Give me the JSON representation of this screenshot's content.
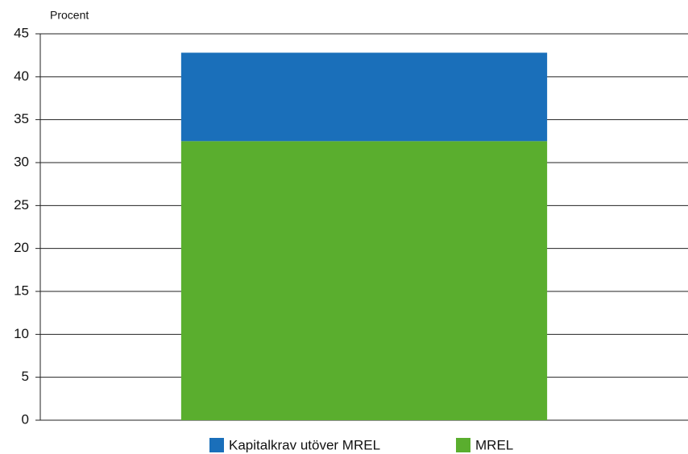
{
  "chart_data": {
    "type": "stacked_bar",
    "y_axis_label": "Procent",
    "categories": [
      null
    ],
    "series": [
      {
        "name": "Kapitalkrav utöver MREL",
        "color": "#1a6fba",
        "values": [
          10.3
        ]
      },
      {
        "name": "MREL",
        "color": "#5aae2e",
        "values": [
          32.5
        ]
      }
    ],
    "ylim": [
      0,
      45
    ],
    "yticks": [
      0,
      5,
      10,
      15,
      20,
      25,
      30,
      35,
      40,
      45
    ],
    "grid": true,
    "legend": "bottom"
  }
}
